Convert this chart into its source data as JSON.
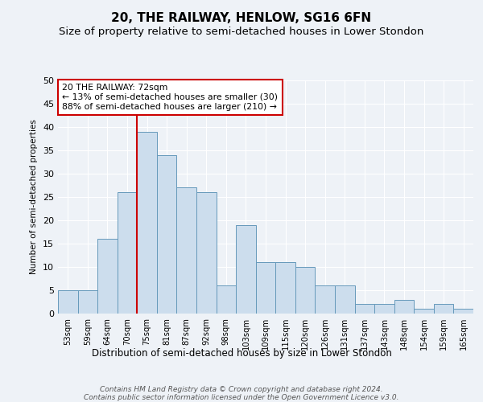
{
  "title": "20, THE RAILWAY, HENLOW, SG16 6FN",
  "subtitle": "Size of property relative to semi-detached houses in Lower Stondon",
  "xlabel_bottom": "Distribution of semi-detached houses by size in Lower Stondon",
  "ylabel": "Number of semi-detached properties",
  "footer_line1": "Contains HM Land Registry data © Crown copyright and database right 2024.",
  "footer_line2": "Contains public sector information licensed under the Open Government Licence v3.0.",
  "categories": [
    "53sqm",
    "59sqm",
    "64sqm",
    "70sqm",
    "75sqm",
    "81sqm",
    "87sqm",
    "92sqm",
    "98sqm",
    "103sqm",
    "109sqm",
    "115sqm",
    "120sqm",
    "126sqm",
    "131sqm",
    "137sqm",
    "143sqm",
    "148sqm",
    "154sqm",
    "159sqm",
    "165sqm"
  ],
  "values": [
    5,
    5,
    16,
    26,
    39,
    34,
    27,
    26,
    6,
    19,
    11,
    11,
    10,
    6,
    6,
    2,
    2,
    3,
    1,
    2,
    1
  ],
  "bar_color": "#ccdded",
  "bar_edge_color": "#6699bb",
  "vline_x": 3.5,
  "vline_color": "#cc0000",
  "annotation_title": "20 THE RAILWAY: 72sqm",
  "annotation_line1": "← 13% of semi-detached houses are smaller (30)",
  "annotation_line2": "88% of semi-detached houses are larger (210) →",
  "annotation_box_color": "#cc0000",
  "ylim": [
    0,
    50
  ],
  "yticks": [
    0,
    5,
    10,
    15,
    20,
    25,
    30,
    35,
    40,
    45,
    50
  ],
  "background_color": "#eef2f7",
  "grid_color": "#ffffff",
  "title_fontsize": 11,
  "subtitle_fontsize": 9.5
}
